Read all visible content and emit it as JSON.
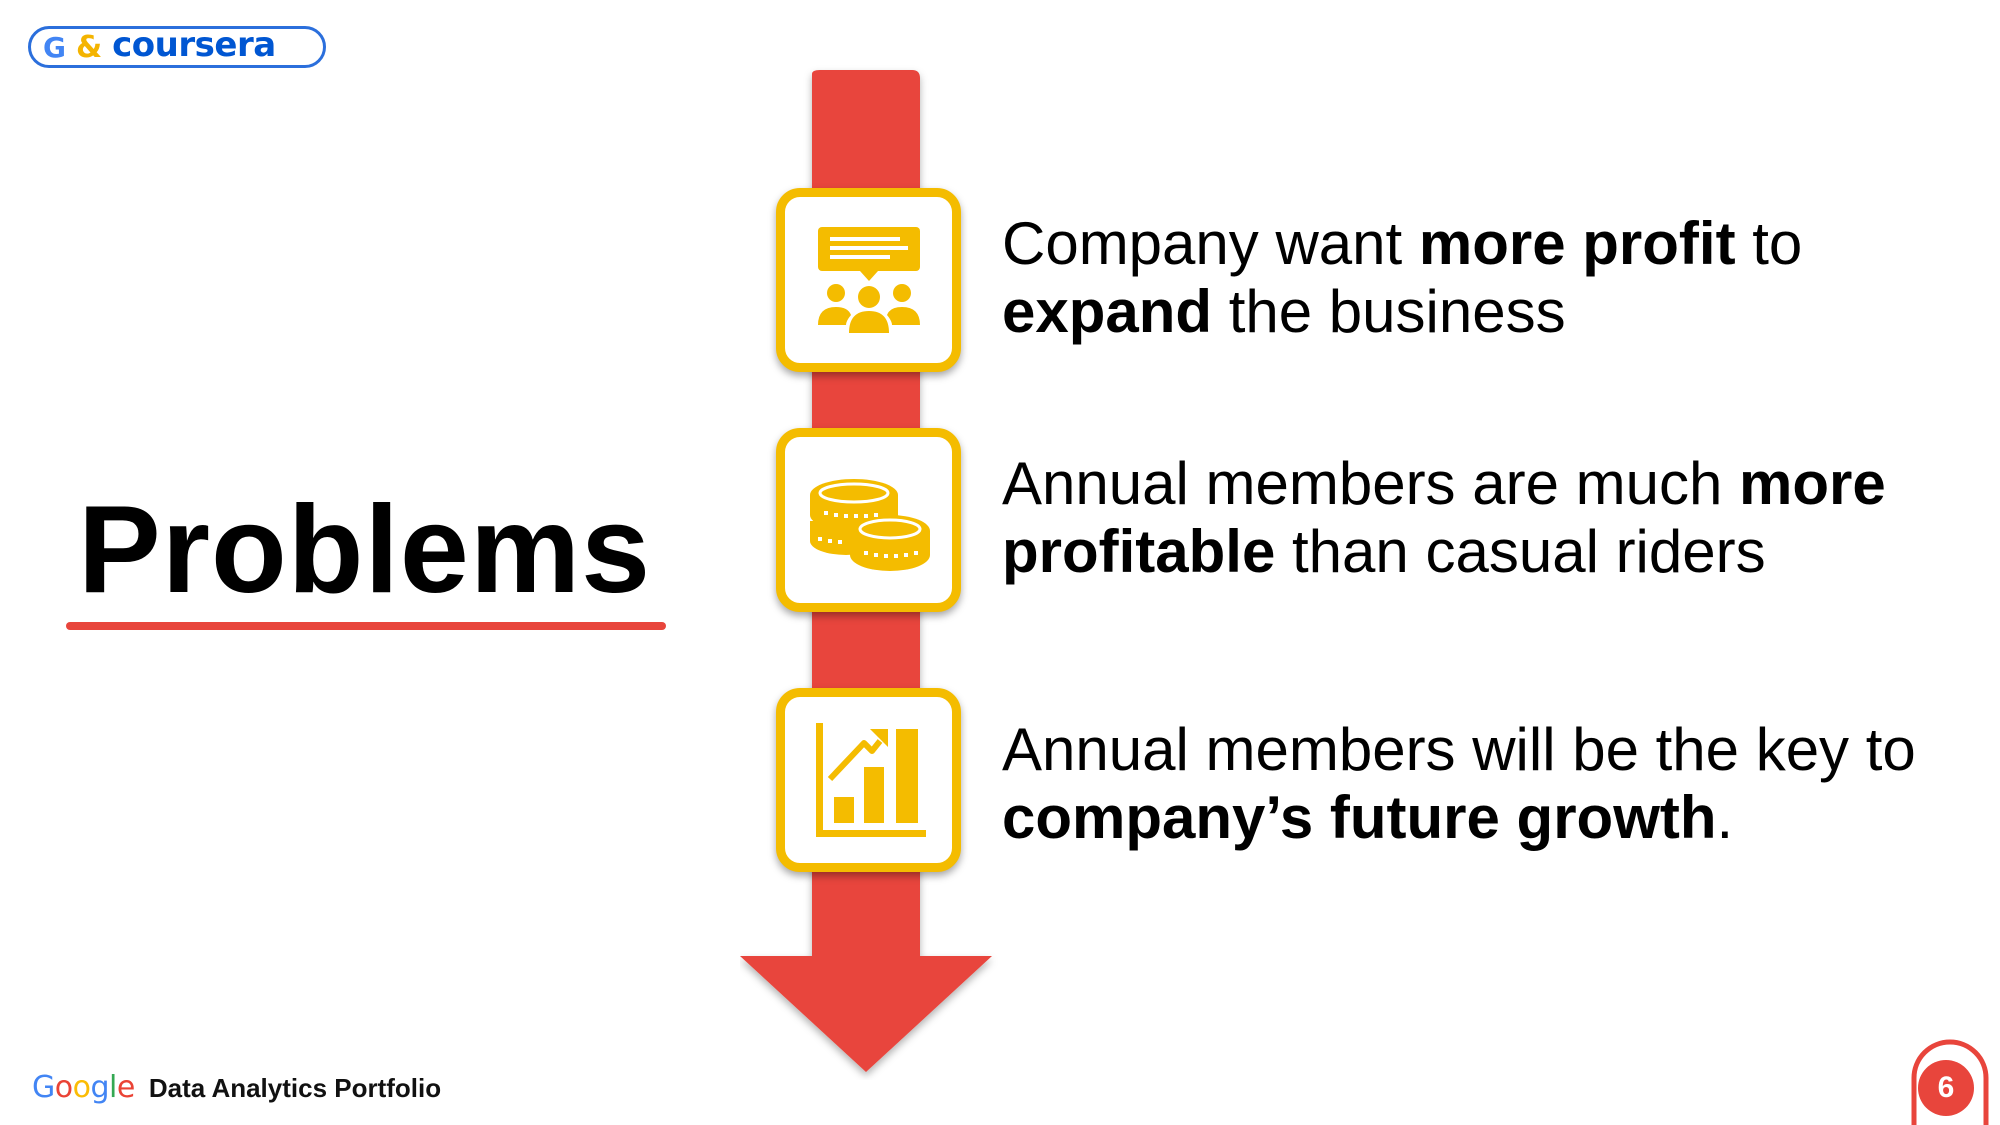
{
  "logo": {
    "g_letter": "G",
    "ampersand": "&",
    "brand": "coursera"
  },
  "title": "Problems",
  "items": [
    {
      "icon": "people-meeting-icon",
      "parts": [
        {
          "text": "Company want ",
          "bold": false
        },
        {
          "text": "more profit",
          "bold": true
        },
        {
          "text": " to ",
          "bold": false
        },
        {
          "text": "expand",
          "bold": true
        },
        {
          "text": " the business",
          "bold": false
        }
      ]
    },
    {
      "icon": "coins-icon",
      "parts": [
        {
          "text": "Annual members are much ",
          "bold": false
        },
        {
          "text": "more profitable",
          "bold": true
        },
        {
          "text": " than casual riders",
          "bold": false
        }
      ]
    },
    {
      "icon": "growth-chart-icon",
      "parts": [
        {
          "text": "Annual members will be the key to ",
          "bold": false
        },
        {
          "text": "company’s future growth",
          "bold": true
        },
        {
          "text": ".",
          "bold": false
        }
      ]
    }
  ],
  "footer": {
    "google": "Google",
    "label": "Data Analytics Portfolio"
  },
  "page_number": "6",
  "colors": {
    "arrow_red": "#e8453c",
    "icon_yellow": "#f4bc00",
    "underline_red": "#e8453c"
  }
}
